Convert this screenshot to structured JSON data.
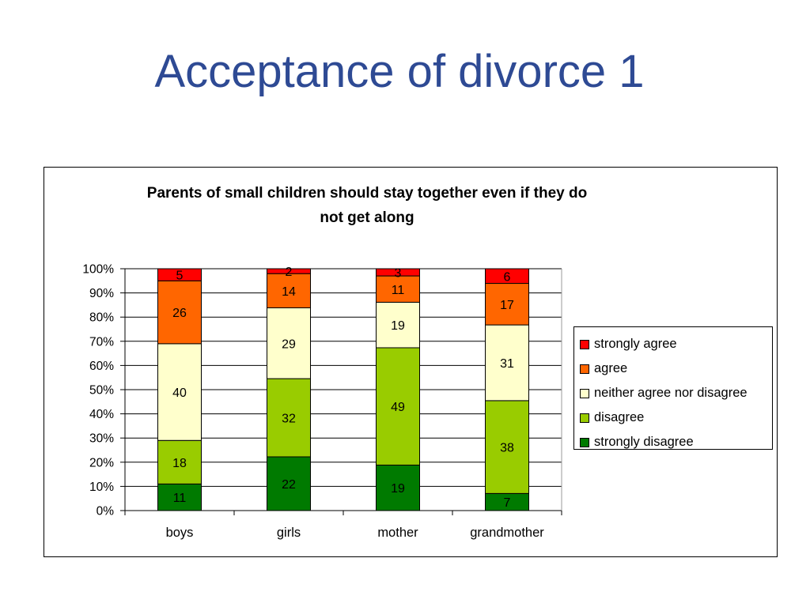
{
  "slide": {
    "title": "Acceptance of divorce 1"
  },
  "chart_data": {
    "type": "bar",
    "stacked": true,
    "percent_stacked": true,
    "title_lines": [
      "Parents of small children should stay together even if they do",
      "not get along"
    ],
    "categories": [
      "boys",
      "girls",
      "mother",
      "grandmother"
    ],
    "series": [
      {
        "name": "strongly disagree",
        "color": "#007A00",
        "values": [
          11,
          22,
          19,
          7
        ]
      },
      {
        "name": "disagree",
        "color": "#99CC00",
        "values": [
          18,
          32,
          49,
          38
        ]
      },
      {
        "name": "neither agree nor disagree",
        "color": "#FFFFCC",
        "values": [
          40,
          29,
          19,
          31
        ]
      },
      {
        "name": "agree",
        "color": "#FF6600",
        "values": [
          26,
          14,
          11,
          17
        ]
      },
      {
        "name": "strongly agree",
        "color": "#FF0000",
        "values": [
          5,
          2,
          3,
          6
        ]
      }
    ],
    "legend_order": [
      "strongly agree",
      "agree",
      "neither agree nor disagree",
      "disagree",
      "strongly disagree"
    ],
    "y_ticks": [
      "0%",
      "10%",
      "20%",
      "30%",
      "40%",
      "50%",
      "60%",
      "70%",
      "80%",
      "90%",
      "100%"
    ],
    "ylim": [
      0,
      100
    ],
    "grid": true,
    "legend_position": "right"
  }
}
